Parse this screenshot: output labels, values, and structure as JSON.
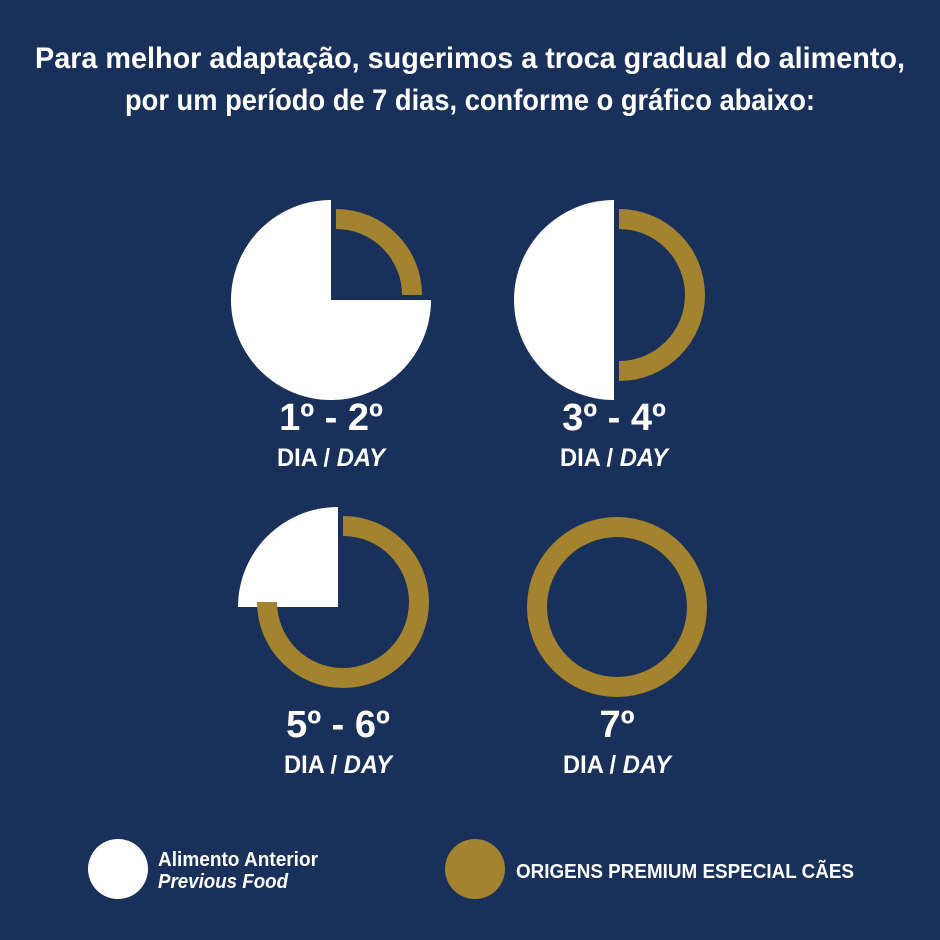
{
  "header": {
    "title_lines": [
      "Para melhor adaptação, sugerimos a troca gradual do alimento,",
      "por um período de 7 dias, conforme o gráfico abaixo:"
    ]
  },
  "panels": [
    {
      "days": "1º - 2º",
      "dia": "DIA /",
      "day": "DAY",
      "previous_share": 75,
      "new_share": 25
    },
    {
      "days": "3º - 4º",
      "dia": "DIA /",
      "day": "DAY",
      "previous_share": 50,
      "new_share": 50
    },
    {
      "days": "5º - 6º",
      "dia": "DIA /",
      "day": "DAY",
      "previous_share": 25,
      "new_share": 75
    },
    {
      "days": "7º",
      "dia": "DIA /",
      "day": "DAY",
      "previous_share": 0,
      "new_share": 100
    }
  ],
  "legend": {
    "previous": {
      "name": "Alimento Anterior",
      "name_en": "Previous Food",
      "color": "#ffffff"
    },
    "new": {
      "name": "ORIGENS PREMIUM ESPECIAL CÃES",
      "color": "#a3832d"
    }
  }
}
